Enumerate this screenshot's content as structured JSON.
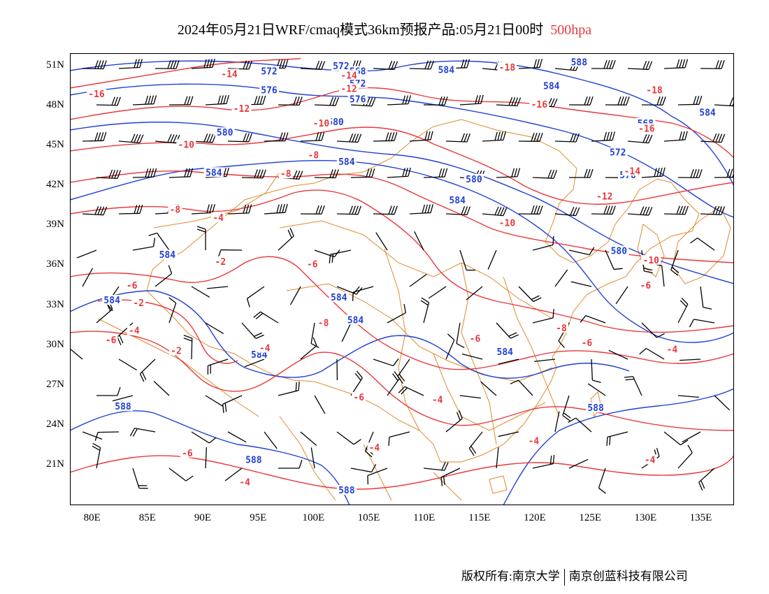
{
  "title": {
    "text": "2024年05月21日WRF/cmaq模式36km预报产品:05月21日00时",
    "level": "500hpa"
  },
  "footer": {
    "left": "版权所有:南京大学",
    "right": "南京创蓝科技有限公司"
  },
  "axes": {
    "lat_labels": [
      "51N",
      "48N",
      "45N",
      "42N",
      "39N",
      "36N",
      "33N",
      "30N",
      "27N",
      "24N",
      "21N"
    ],
    "lon_labels": [
      "80E",
      "85E",
      "90E",
      "95E",
      "100E",
      "105E",
      "110E",
      "115E",
      "120E",
      "125E",
      "130E",
      "135E"
    ],
    "lon_range": [
      78,
      138
    ],
    "lat_range": [
      18,
      52
    ]
  },
  "colors": {
    "height_contour": "#1f3fd6",
    "temp_contour": "#e8383d",
    "boundary": "#e08a2a",
    "wind_barb": "#000000"
  },
  "contour_labels": [
    {
      "text": "588",
      "lon": 124,
      "lat": 51.3,
      "kind": "height"
    },
    {
      "text": "584",
      "lon": 112,
      "lat": 50.7,
      "kind": "height"
    },
    {
      "text": "584",
      "lon": 121.5,
      "lat": 49.5,
      "kind": "height"
    },
    {
      "text": "584",
      "lon": 135.6,
      "lat": 47.5,
      "kind": "height"
    },
    {
      "text": "568",
      "lon": 130,
      "lat": 46.7,
      "kind": "height"
    },
    {
      "text": "572",
      "lon": 102.5,
      "lat": 51,
      "kind": "height"
    },
    {
      "text": "568",
      "lon": 104,
      "lat": 50.6,
      "kind": "height"
    },
    {
      "text": "572",
      "lon": 104,
      "lat": 49.7,
      "kind": "height"
    },
    {
      "text": "576",
      "lon": 104,
      "lat": 48.5,
      "kind": "height"
    },
    {
      "text": "572",
      "lon": 96,
      "lat": 50.6,
      "kind": "height"
    },
    {
      "text": "576",
      "lon": 96,
      "lat": 49.2,
      "kind": "height"
    },
    {
      "text": "580",
      "lon": 92,
      "lat": 46,
      "kind": "height"
    },
    {
      "text": "580",
      "lon": 102,
      "lat": 46.8,
      "kind": "height"
    },
    {
      "text": "584",
      "lon": 91,
      "lat": 43,
      "kind": "height"
    },
    {
      "text": "584",
      "lon": 103,
      "lat": 43.8,
      "kind": "height"
    },
    {
      "text": "580",
      "lon": 114.5,
      "lat": 42.5,
      "kind": "height"
    },
    {
      "text": "584",
      "lon": 113,
      "lat": 40.9,
      "kind": "height"
    },
    {
      "text": "576",
      "lon": 128.4,
      "lat": 42.8,
      "kind": "height"
    },
    {
      "text": "572",
      "lon": 127.5,
      "lat": 44.5,
      "kind": "height"
    },
    {
      "text": "580",
      "lon": 127.6,
      "lat": 37.1,
      "kind": "height"
    },
    {
      "text": "584",
      "lon": 86.8,
      "lat": 36.8,
      "kind": "height"
    },
    {
      "text": "584",
      "lon": 81.8,
      "lat": 33.4,
      "kind": "height"
    },
    {
      "text": "584",
      "lon": 102.3,
      "lat": 33.6,
      "kind": "height"
    },
    {
      "text": "584",
      "lon": 103.8,
      "lat": 31.9,
      "kind": "height"
    },
    {
      "text": "584",
      "lon": 95.1,
      "lat": 29.3,
      "kind": "height"
    },
    {
      "text": "584",
      "lon": 117.3,
      "lat": 29.5,
      "kind": "height"
    },
    {
      "text": "588",
      "lon": 125.5,
      "lat": 25.3,
      "kind": "height"
    },
    {
      "text": "588",
      "lon": 82.8,
      "lat": 25.4,
      "kind": "height"
    },
    {
      "text": "588",
      "lon": 94.6,
      "lat": 21.4,
      "kind": "height"
    },
    {
      "text": "588",
      "lon": 103,
      "lat": 19.1,
      "kind": "height"
    },
    {
      "text": "-14",
      "lon": 92.4,
      "lat": 50.4,
      "kind": "temp"
    },
    {
      "text": "-16",
      "lon": 80.4,
      "lat": 48.9,
      "kind": "temp"
    },
    {
      "text": "-12",
      "lon": 93.5,
      "lat": 47.8,
      "kind": "temp"
    },
    {
      "text": "-14",
      "lon": 103.2,
      "lat": 50.3,
      "kind": "temp"
    },
    {
      "text": "-12",
      "lon": 103.2,
      "lat": 49.3,
      "kind": "temp"
    },
    {
      "text": "-10",
      "lon": 100.7,
      "lat": 46.7,
      "kind": "temp"
    },
    {
      "text": "-10",
      "lon": 88.5,
      "lat": 45.1,
      "kind": "temp"
    },
    {
      "text": "-8",
      "lon": 100,
      "lat": 44.3,
      "kind": "temp"
    },
    {
      "text": "-8",
      "lon": 97.5,
      "lat": 42.9,
      "kind": "temp"
    },
    {
      "text": "-8",
      "lon": 87.5,
      "lat": 40.2,
      "kind": "temp"
    },
    {
      "text": "-4",
      "lon": 91.4,
      "lat": 39.6,
      "kind": "temp"
    },
    {
      "text": "-18",
      "lon": 117.5,
      "lat": 50.9,
      "kind": "temp"
    },
    {
      "text": "-18",
      "lon": 130.8,
      "lat": 49.2,
      "kind": "temp"
    },
    {
      "text": "-16",
      "lon": 120.4,
      "lat": 48.1,
      "kind": "temp"
    },
    {
      "text": "-16",
      "lon": 130.1,
      "lat": 46.3,
      "kind": "temp"
    },
    {
      "text": "-14",
      "lon": 128.8,
      "lat": 43.1,
      "kind": "temp"
    },
    {
      "text": "-12",
      "lon": 126.3,
      "lat": 41.2,
      "kind": "temp"
    },
    {
      "text": "-10",
      "lon": 117.5,
      "lat": 39.2,
      "kind": "temp"
    },
    {
      "text": "-10",
      "lon": 130.5,
      "lat": 36.4,
      "kind": "temp"
    },
    {
      "text": "-2",
      "lon": 91.6,
      "lat": 36.3,
      "kind": "temp"
    },
    {
      "text": "-6",
      "lon": 99.9,
      "lat": 36.1,
      "kind": "temp"
    },
    {
      "text": "-6",
      "lon": 83.6,
      "lat": 34.5,
      "kind": "temp"
    },
    {
      "text": "-2",
      "lon": 84.2,
      "lat": 33.2,
      "kind": "temp"
    },
    {
      "text": "-6",
      "lon": 130,
      "lat": 34.5,
      "kind": "temp"
    },
    {
      "text": "-8",
      "lon": 100.9,
      "lat": 31.7,
      "kind": "temp"
    },
    {
      "text": "-8",
      "lon": 122.4,
      "lat": 31.3,
      "kind": "temp"
    },
    {
      "text": "-4",
      "lon": 83.8,
      "lat": 31.1,
      "kind": "temp"
    },
    {
      "text": "-6",
      "lon": 81.7,
      "lat": 30.4,
      "kind": "temp"
    },
    {
      "text": "-4",
      "lon": 95.6,
      "lat": 29.8,
      "kind": "temp"
    },
    {
      "text": "-2",
      "lon": 87.6,
      "lat": 29.6,
      "kind": "temp"
    },
    {
      "text": "-6",
      "lon": 114.6,
      "lat": 30.5,
      "kind": "temp"
    },
    {
      "text": "-6",
      "lon": 124.7,
      "lat": 30.2,
      "kind": "temp"
    },
    {
      "text": "-4",
      "lon": 132.4,
      "lat": 29.7,
      "kind": "temp"
    },
    {
      "text": "-6",
      "lon": 104.1,
      "lat": 26.1,
      "kind": "temp"
    },
    {
      "text": "-4",
      "lon": 111.2,
      "lat": 25.9,
      "kind": "temp"
    },
    {
      "text": "-4",
      "lon": 105.5,
      "lat": 22.3,
      "kind": "temp"
    },
    {
      "text": "-4",
      "lon": 119.9,
      "lat": 22.8,
      "kind": "temp"
    },
    {
      "text": "-6",
      "lon": 88.6,
      "lat": 21.9,
      "kind": "temp"
    },
    {
      "text": "-4",
      "lon": 130.4,
      "lat": 21.4,
      "kind": "temp"
    },
    {
      "text": "-4",
      "lon": 93.8,
      "lat": 19.7,
      "kind": "temp"
    }
  ]
}
